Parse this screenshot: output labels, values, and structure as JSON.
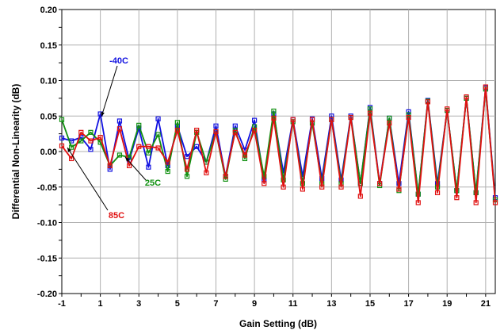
{
  "chart_data": {
    "type": "line",
    "xlabel": "Gain Setting (dB)",
    "ylabel": "Differential Non-Linearity (dB)",
    "xlim": [
      -1,
      21.5
    ],
    "ylim": [
      -0.2,
      0.2
    ],
    "x_ticks": [
      -1,
      1,
      3,
      5,
      7,
      9,
      11,
      13,
      15,
      17,
      19,
      21
    ],
    "y_ticks": [
      -0.2,
      -0.15,
      -0.1,
      -0.05,
      0.0,
      0.05,
      0.1,
      0.15,
      0.2
    ],
    "x_tick_labels": [
      "-1",
      "1",
      "3",
      "5",
      "7",
      "9",
      "11",
      "13",
      "15",
      "17",
      "19",
      "21"
    ],
    "y_tick_labels": [
      "-0.20",
      "-0.15",
      "-0.10",
      "-0.05",
      "0.00",
      "0.05",
      "0.10",
      "0.15",
      "0.20"
    ],
    "grid": true,
    "x": [
      -1,
      -0.5,
      0,
      0.5,
      1,
      1.5,
      2,
      2.5,
      3,
      3.5,
      4,
      4.5,
      5,
      5.5,
      6,
      6.5,
      7,
      7.5,
      8,
      8.5,
      9,
      9.5,
      10,
      10.5,
      11,
      11.5,
      12,
      12.5,
      13,
      13.5,
      14,
      14.5,
      15,
      15.5,
      16,
      16.5,
      17,
      17.5,
      18,
      18.5,
      19,
      19.5,
      20,
      20.5,
      21,
      21.5
    ],
    "series": [
      {
        "name": "-40C",
        "color": "#1010e0",
        "values": [
          0.019,
          0.015,
          0.02,
          0.003,
          0.053,
          -0.025,
          0.043,
          -0.012,
          0.033,
          -0.022,
          0.046,
          -0.02,
          0.036,
          -0.007,
          0.007,
          -0.015,
          0.036,
          -0.035,
          0.036,
          0.002,
          0.044,
          -0.04,
          0.053,
          -0.03,
          0.045,
          -0.035,
          0.046,
          -0.038,
          0.05,
          -0.04,
          0.05,
          -0.045,
          0.062,
          -0.045,
          0.047,
          -0.045,
          0.056,
          -0.06,
          0.072,
          -0.045,
          0.058,
          -0.055,
          0.075,
          -0.058,
          0.09,
          -0.065
        ]
      },
      {
        "name": "25C",
        "color": "#109010",
        "values": [
          0.045,
          0.006,
          0.015,
          0.027,
          0.013,
          -0.02,
          -0.005,
          -0.008,
          0.037,
          -0.002,
          0.024,
          -0.028,
          0.041,
          -0.035,
          0.027,
          -0.015,
          0.028,
          -0.039,
          0.03,
          -0.01,
          0.035,
          -0.035,
          0.057,
          -0.04,
          0.042,
          -0.045,
          0.04,
          -0.045,
          0.045,
          -0.045,
          0.048,
          -0.045,
          0.06,
          -0.048,
          0.047,
          -0.055,
          0.052,
          -0.06,
          0.071,
          -0.05,
          0.058,
          -0.055,
          0.075,
          -0.058,
          0.088,
          -0.068
        ]
      },
      {
        "name": "85C",
        "color": "#e01010",
        "values": [
          0.008,
          -0.01,
          0.027,
          0.015,
          0.02,
          -0.02,
          0.032,
          -0.02,
          0.007,
          0.007,
          0.005,
          -0.015,
          0.03,
          -0.025,
          0.03,
          -0.03,
          0.028,
          -0.035,
          0.027,
          -0.005,
          0.03,
          -0.045,
          0.047,
          -0.05,
          0.045,
          -0.053,
          0.045,
          -0.05,
          0.045,
          -0.05,
          0.048,
          -0.063,
          0.054,
          -0.045,
          0.04,
          -0.053,
          0.048,
          -0.072,
          0.07,
          -0.058,
          0.06,
          -0.065,
          0.077,
          -0.072,
          0.091,
          -0.072
        ]
      }
    ],
    "annotations": [
      {
        "text": "-40C",
        "color": "#1010e0"
      },
      {
        "text": "25C",
        "color": "#109010"
      },
      {
        "text": "85C",
        "color": "#e01010"
      }
    ]
  }
}
